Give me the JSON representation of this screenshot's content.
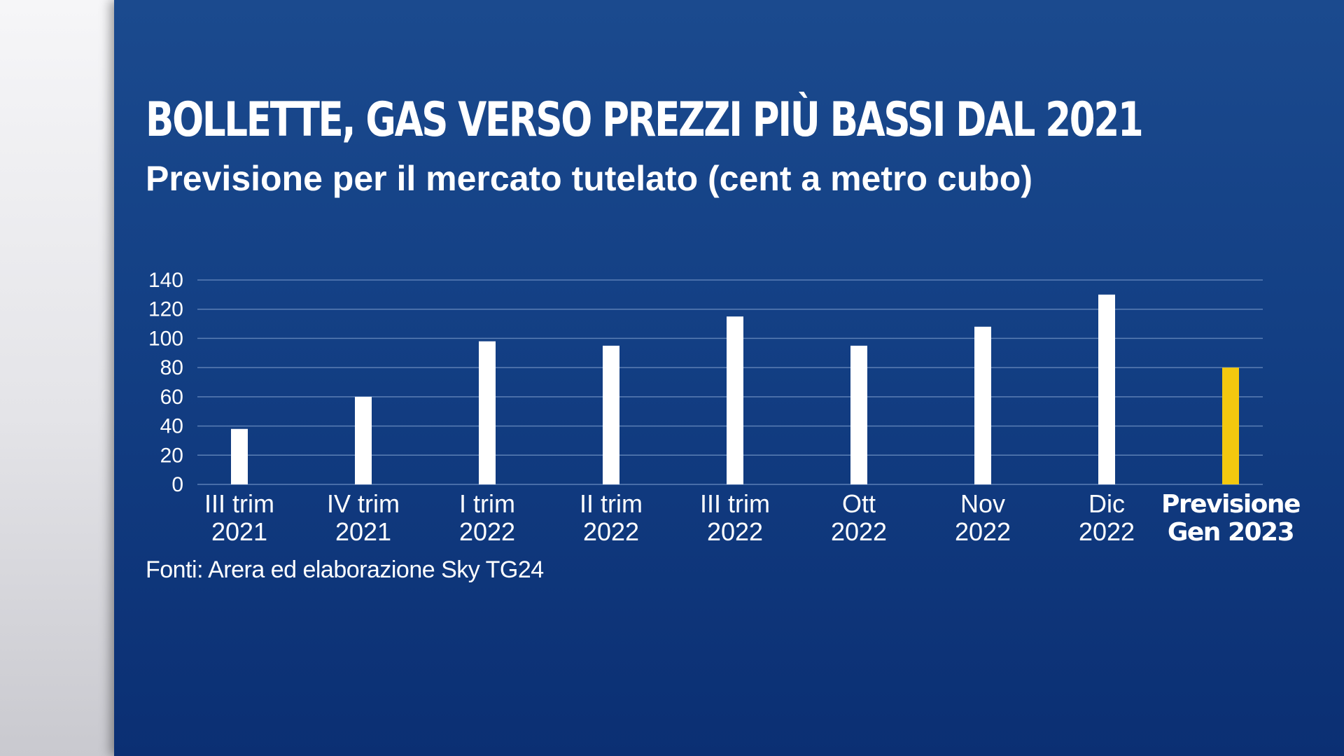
{
  "title": "BOLLETTE, GAS VERSO PREZZI PIÙ BASSI DAL 2021",
  "subtitle": "Previsione per il mercato tutelato (cent a metro cubo)",
  "source": "Fonti: Arera ed elaborazione Sky TG24",
  "colors": {
    "background_top": "#1b4a8e",
    "background_bottom": "#0b2f73",
    "side_panel": "#e6e6ea",
    "bar": "#ffffff",
    "highlight_bar": "#f3c80f",
    "highlight_label": "#f3c80f",
    "gridline": "#5b7fb5",
    "text": "#ffffff"
  },
  "chart_data": {
    "type": "bar",
    "title": "BOLLETTE, GAS VERSO PREZZI PIÙ BASSI DAL 2021",
    "subtitle": "Previsione per il mercato tutelato (cent a metro cubo)",
    "xlabel": "",
    "ylabel": "",
    "ylim": [
      0,
      140
    ],
    "yticks": [
      0,
      20,
      40,
      60,
      80,
      100,
      120,
      140
    ],
    "grid": true,
    "legend": "none",
    "categories": [
      [
        "III trim",
        "2021"
      ],
      [
        "IV trim",
        "2021"
      ],
      [
        "I trim",
        "2022"
      ],
      [
        "II trim",
        "2022"
      ],
      [
        "III trim",
        "2022"
      ],
      [
        "Ott",
        "2022"
      ],
      [
        "Nov",
        "2022"
      ],
      [
        "Dic",
        "2022"
      ],
      [
        "Previsione",
        "Gen 2023"
      ]
    ],
    "values": [
      38,
      60,
      98,
      95,
      115,
      95,
      108,
      130,
      80
    ],
    "highlight_index": 8
  }
}
